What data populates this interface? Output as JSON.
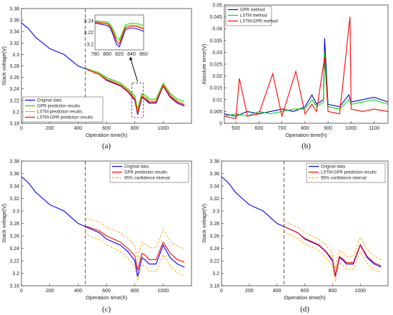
{
  "figure": {
    "panels": [
      "a",
      "b",
      "c",
      "d"
    ]
  },
  "chart_data": [
    {
      "id": "a",
      "type": "line",
      "caption": "(a)",
      "xlabel": "Operation time(h)",
      "ylabel": "Stack voltage(V)",
      "xlim": [
        0,
        1200
      ],
      "ylim": [
        3.18,
        3.38
      ],
      "xticks": [
        0,
        200,
        400,
        600,
        800,
        1000
      ],
      "yticks": [
        3.18,
        3.2,
        3.22,
        3.24,
        3.26,
        3.28,
        3.3,
        3.32,
        3.34,
        3.36,
        3.38
      ],
      "grid": false,
      "legend_position": "bottom-left",
      "split_line_x": 450,
      "series": [
        {
          "name": "Original data",
          "color": "#0000ff",
          "x": [
            0,
            50,
            100,
            150,
            200,
            250,
            300,
            350,
            400,
            450,
            500,
            550,
            600,
            650,
            700,
            750,
            800,
            820,
            850,
            880,
            900,
            950,
            1000,
            1050,
            1100,
            1150
          ],
          "y": [
            3.355,
            3.345,
            3.33,
            3.32,
            3.31,
            3.305,
            3.3,
            3.29,
            3.28,
            3.275,
            3.27,
            3.265,
            3.255,
            3.25,
            3.245,
            3.235,
            3.22,
            3.195,
            3.225,
            3.22,
            3.215,
            3.215,
            3.245,
            3.225,
            3.215,
            3.21
          ]
        },
        {
          "name": "GPR prediction results",
          "color": "#00dd00",
          "x": [
            450,
            500,
            550,
            600,
            650,
            700,
            750,
            800,
            820,
            850,
            880,
            900,
            950,
            1000,
            1050,
            1100,
            1150
          ],
          "y": [
            3.276,
            3.272,
            3.268,
            3.26,
            3.255,
            3.25,
            3.24,
            3.228,
            3.205,
            3.232,
            3.228,
            3.222,
            3.222,
            3.25,
            3.232,
            3.222,
            3.218
          ]
        },
        {
          "name": "LSTM prediction results",
          "color": "#ffa500",
          "x": [
            450,
            500,
            550,
            600,
            650,
            700,
            750,
            800,
            820,
            850,
            880,
            900,
            950,
            1000,
            1050,
            1100,
            1150
          ],
          "y": [
            3.275,
            3.271,
            3.266,
            3.258,
            3.253,
            3.248,
            3.238,
            3.225,
            3.2,
            3.229,
            3.225,
            3.219,
            3.219,
            3.248,
            3.229,
            3.219,
            3.214
          ]
        },
        {
          "name": "LSTM-GPR prediction results",
          "color": "#ff0000",
          "x": [
            450,
            500,
            550,
            600,
            650,
            700,
            750,
            800,
            820,
            850,
            880,
            900,
            950,
            1000,
            1050,
            1100,
            1150
          ],
          "y": [
            3.275,
            3.27,
            3.265,
            3.256,
            3.251,
            3.246,
            3.236,
            3.222,
            3.197,
            3.227,
            3.222,
            3.217,
            3.217,
            3.246,
            3.227,
            3.217,
            3.212
          ]
        }
      ],
      "inset": {
        "xlim": [
          780,
          860
        ],
        "ylim": [
          3.19,
          3.25
        ],
        "xticks": [
          780,
          800,
          820,
          840,
          860
        ],
        "yticks": [
          3.2,
          3.22,
          3.24
        ],
        "series": [
          {
            "color": "#0000ff",
            "x": [
              780,
              790,
              800,
              805,
              810,
              815,
              820,
              825,
              830,
              840,
              850,
              860
            ],
            "y": [
              3.236,
              3.234,
              3.232,
              3.228,
              3.215,
              3.2,
              3.195,
              3.21,
              3.225,
              3.228,
              3.226,
              3.222
            ]
          },
          {
            "color": "#00dd00",
            "x": [
              780,
              790,
              800,
              805,
              810,
              815,
              820,
              825,
              830,
              840,
              850,
              860
            ],
            "y": [
              3.24,
              3.239,
              3.238,
              3.234,
              3.225,
              3.212,
              3.208,
              3.22,
              3.233,
              3.236,
              3.235,
              3.232
            ]
          },
          {
            "color": "#ffa500",
            "x": [
              780,
              790,
              800,
              805,
              810,
              815,
              820,
              825,
              830,
              840,
              850,
              860
            ],
            "y": [
              3.239,
              3.237,
              3.236,
              3.232,
              3.222,
              3.208,
              3.204,
              3.217,
              3.23,
              3.233,
              3.232,
              3.228
            ]
          },
          {
            "color": "#ff0000",
            "x": [
              780,
              790,
              800,
              805,
              810,
              815,
              820,
              825,
              830,
              840,
              850,
              860
            ],
            "y": [
              3.238,
              3.236,
              3.235,
              3.23,
              3.219,
              3.205,
              3.2,
              3.214,
              3.228,
              3.231,
              3.23,
              3.226
            ]
          }
        ]
      }
    },
    {
      "id": "b",
      "type": "line",
      "caption": "(b)",
      "xlabel": "Operation time(h)",
      "ylabel": "Absolute error(V)",
      "xlim": [
        450,
        1160
      ],
      "ylim": [
        0,
        0.05
      ],
      "xticks": [
        500,
        600,
        700,
        800,
        900,
        1000,
        1100
      ],
      "yticks": [
        0,
        0.005,
        0.01,
        0.015,
        0.02,
        0.025,
        0.03,
        0.035,
        0.04,
        0.045,
        0.05
      ],
      "ytick_labels": [
        "0",
        "0.005",
        "0.01",
        "0.015",
        "0.02",
        "0.025",
        "0.03",
        "0.035",
        "0.04",
        "0.045",
        "0.05"
      ],
      "grid": false,
      "legend_position": "top-left",
      "series": [
        {
          "name": "GPR method",
          "color": "#0000cc",
          "x": [
            450,
            500,
            550,
            600,
            650,
            700,
            750,
            800,
            830,
            850,
            880,
            885,
            900,
            950,
            990,
            1000,
            1050,
            1100,
            1160
          ],
          "y": [
            0.004,
            0.003,
            0.005,
            0.004,
            0.005,
            0.006,
            0.005,
            0.007,
            0.012,
            0.008,
            0.01,
            0.036,
            0.008,
            0.007,
            0.012,
            0.009,
            0.01,
            0.011,
            0.009
          ]
        },
        {
          "name": "LSTM method",
          "color": "#00dd00",
          "x": [
            450,
            500,
            550,
            600,
            650,
            700,
            750,
            800,
            830,
            850,
            880,
            885,
            900,
            950,
            990,
            1000,
            1050,
            1100,
            1160
          ],
          "y": [
            0.003,
            0.004,
            0.003,
            0.005,
            0.004,
            0.005,
            0.006,
            0.006,
            0.01,
            0.007,
            0.009,
            0.03,
            0.007,
            0.006,
            0.01,
            0.008,
            0.009,
            0.01,
            0.008
          ]
        },
        {
          "name": "LSTM-GPR method",
          "color": "#ff0000",
          "x": [
            450,
            500,
            515,
            550,
            600,
            660,
            700,
            760,
            800,
            830,
            850,
            885,
            900,
            950,
            995,
            1000,
            1050,
            1100,
            1160
          ],
          "y": [
            0.003,
            0.002,
            0.019,
            0.003,
            0.004,
            0.021,
            0.003,
            0.022,
            0.004,
            0.008,
            0.005,
            0.028,
            0.005,
            0.004,
            0.045,
            0.006,
            0.005,
            0.006,
            0.005
          ]
        }
      ]
    },
    {
      "id": "c",
      "type": "line",
      "caption": "(c)",
      "xlabel": "Operation time(h)",
      "ylabel": "Stack voltage(V)",
      "xlim": [
        0,
        1200
      ],
      "ylim": [
        3.18,
        3.38
      ],
      "xticks": [
        0,
        200,
        400,
        600,
        800,
        1000
      ],
      "yticks": [
        3.18,
        3.2,
        3.22,
        3.24,
        3.26,
        3.28,
        3.3,
        3.32,
        3.34,
        3.36,
        3.38
      ],
      "grid": false,
      "legend_position": "top-right",
      "split_line_x": 450,
      "series": [
        {
          "name": "Original data",
          "color": "#0000ff",
          "x": [
            0,
            50,
            100,
            150,
            200,
            250,
            300,
            350,
            400,
            450,
            500,
            550,
            600,
            650,
            700,
            750,
            800,
            820,
            850,
            880,
            900,
            950,
            1000,
            1050,
            1100,
            1150
          ],
          "y": [
            3.355,
            3.345,
            3.33,
            3.32,
            3.31,
            3.305,
            3.3,
            3.29,
            3.28,
            3.275,
            3.27,
            3.265,
            3.255,
            3.25,
            3.245,
            3.235,
            3.22,
            3.195,
            3.225,
            3.22,
            3.215,
            3.215,
            3.245,
            3.225,
            3.215,
            3.21
          ]
        },
        {
          "name": "GPR prediction results",
          "color": "#ff0000",
          "x": [
            450,
            500,
            550,
            600,
            650,
            700,
            750,
            800,
            820,
            850,
            880,
            900,
            950,
            1000,
            1050,
            1100,
            1150
          ],
          "y": [
            3.276,
            3.272,
            3.268,
            3.26,
            3.255,
            3.25,
            3.24,
            3.228,
            3.205,
            3.232,
            3.228,
            3.222,
            3.222,
            3.25,
            3.232,
            3.222,
            3.218
          ]
        },
        {
          "name": "95% confidence interval",
          "color": "#ffa500",
          "dashed": true,
          "x": [
            450,
            500,
            550,
            600,
            650,
            700,
            750,
            800,
            820,
            850,
            880,
            900,
            950,
            1000,
            1050,
            1100,
            1150
          ],
          "y": [
            3.288,
            3.286,
            3.282,
            3.274,
            3.27,
            3.265,
            3.256,
            3.245,
            3.222,
            3.25,
            3.246,
            3.241,
            3.241,
            3.27,
            3.252,
            3.243,
            3.24
          ]
        },
        {
          "name": "",
          "color": "#ffa500",
          "dashed": true,
          "x": [
            450,
            500,
            550,
            600,
            650,
            700,
            750,
            800,
            820,
            850,
            880,
            900,
            950,
            1000,
            1050,
            1100,
            1150
          ],
          "y": [
            3.264,
            3.258,
            3.254,
            3.246,
            3.24,
            3.235,
            3.224,
            3.211,
            3.188,
            3.214,
            3.21,
            3.203,
            3.203,
            3.23,
            3.212,
            3.201,
            3.196
          ]
        }
      ]
    },
    {
      "id": "d",
      "type": "line",
      "caption": "(d)",
      "xlabel": "Operation time(h)",
      "ylabel": "Stack voltage(V)",
      "xlim": [
        0,
        1200
      ],
      "ylim": [
        3.18,
        3.38
      ],
      "xticks": [
        0,
        200,
        400,
        600,
        800,
        1000
      ],
      "yticks": [
        3.18,
        3.2,
        3.22,
        3.24,
        3.26,
        3.28,
        3.3,
        3.32,
        3.34,
        3.36,
        3.38
      ],
      "grid": false,
      "legend_position": "top-right",
      "split_line_x": 450,
      "series": [
        {
          "name": "Original data",
          "color": "#0000ff",
          "x": [
            0,
            50,
            100,
            150,
            200,
            250,
            300,
            350,
            400,
            450,
            500,
            550,
            600,
            650,
            700,
            750,
            800,
            820,
            850,
            880,
            900,
            950,
            1000,
            1050,
            1100,
            1150
          ],
          "y": [
            3.355,
            3.345,
            3.33,
            3.32,
            3.31,
            3.305,
            3.3,
            3.29,
            3.28,
            3.275,
            3.27,
            3.265,
            3.255,
            3.25,
            3.245,
            3.235,
            3.22,
            3.195,
            3.225,
            3.22,
            3.215,
            3.215,
            3.245,
            3.225,
            3.215,
            3.21
          ]
        },
        {
          "name": "LSTM-GPR prediction results",
          "color": "#ff0000",
          "x": [
            450,
            500,
            550,
            600,
            650,
            700,
            750,
            800,
            820,
            850,
            880,
            900,
            950,
            1000,
            1050,
            1100,
            1150
          ],
          "y": [
            3.275,
            3.27,
            3.265,
            3.256,
            3.251,
            3.246,
            3.236,
            3.222,
            3.197,
            3.227,
            3.222,
            3.217,
            3.217,
            3.246,
            3.227,
            3.217,
            3.212
          ]
        },
        {
          "name": "95% confidence interval",
          "color": "#ffa500",
          "dashed": true,
          "x": [
            450,
            500,
            550,
            600,
            650,
            700,
            750,
            800,
            820,
            850,
            880,
            900,
            950,
            1000,
            1050,
            1100,
            1150
          ],
          "y": [
            3.283,
            3.279,
            3.274,
            3.265,
            3.26,
            3.255,
            3.246,
            3.232,
            3.207,
            3.237,
            3.232,
            3.227,
            3.227,
            3.258,
            3.238,
            3.228,
            3.222
          ]
        },
        {
          "name": "",
          "color": "#ffa500",
          "dashed": true,
          "x": [
            450,
            500,
            550,
            600,
            650,
            700,
            750,
            800,
            820,
            850,
            880,
            900,
            950,
            1000,
            1050,
            1100,
            1150
          ],
          "y": [
            3.267,
            3.261,
            3.256,
            3.247,
            3.242,
            3.237,
            3.226,
            3.212,
            3.187,
            3.217,
            3.212,
            3.207,
            3.207,
            3.234,
            3.216,
            3.206,
            3.202
          ]
        }
      ]
    }
  ]
}
